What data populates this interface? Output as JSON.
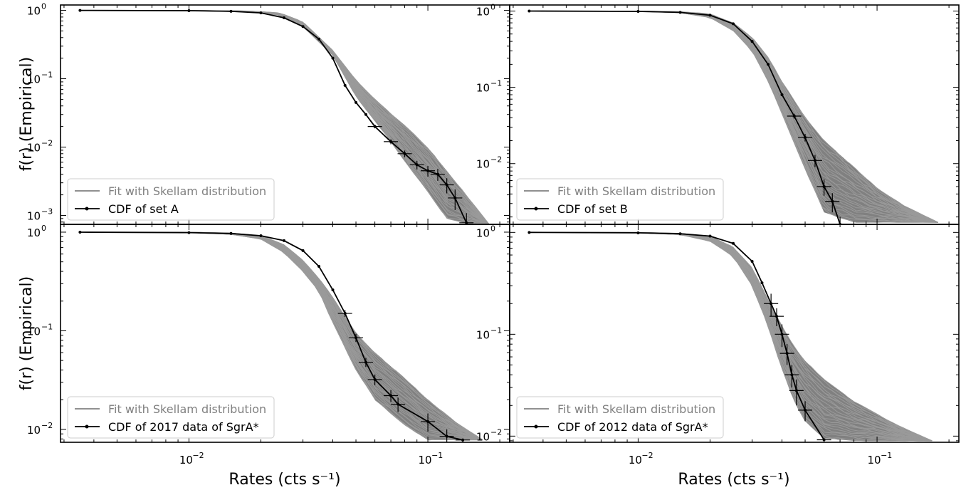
{
  "figure": {
    "ylabel_top": "f(r) (Empirical)",
    "ylabel_bottom": "f(r) (Empirical)",
    "xlabel_left": "Rates (cts s⁻¹)",
    "xlabel_right": "Rates (cts s⁻¹)"
  },
  "colors": {
    "fit": "#808080",
    "cdf": "#000000",
    "axes": "#000000"
  },
  "chart_data": [
    {
      "type": "line",
      "xscale": "log",
      "yscale": "log",
      "xlim": [
        0.0029,
        0.22
      ],
      "ylim": [
        0.00074,
        1.2
      ],
      "legend": {
        "placement": "bottom-left",
        "entries": [
          "Fit with Skellam distribution",
          "CDF of set A"
        ]
      },
      "xticks": [
        {
          "value": 0.01,
          "label": "10",
          "exp": "−2"
        },
        {
          "value": 0.1,
          "label": "10",
          "exp": "−1"
        }
      ],
      "yticks": [
        {
          "value": 1,
          "label": "10",
          "exp": "0"
        },
        {
          "value": 0.1,
          "label": "10",
          "exp": "−1"
        },
        {
          "value": 0.01,
          "label": "10",
          "exp": "−2"
        },
        {
          "value": 0.001,
          "label": "10",
          "exp": "−3"
        }
      ],
      "series": [
        {
          "name": "Fit with Skellam distribution",
          "kind": "band",
          "x": [
            0.0035,
            0.01,
            0.018,
            0.024,
            0.03,
            0.04,
            0.05,
            0.06,
            0.07,
            0.08,
            0.1,
            0.12,
            0.15,
            0.18
          ],
          "lo": [
            1.0,
            0.99,
            0.95,
            0.85,
            0.58,
            0.22,
            0.055,
            0.024,
            0.012,
            0.0062,
            0.0022,
            0.0009,
            0.00075,
            0.00075
          ],
          "hi": [
            1.0,
            1.0,
            0.98,
            0.92,
            0.68,
            0.26,
            0.095,
            0.05,
            0.031,
            0.021,
            0.0098,
            0.0045,
            0.0017,
            0.00075
          ]
        },
        {
          "name": "CDF of set A",
          "kind": "cdf",
          "x": [
            0.0035,
            0.01,
            0.015,
            0.02,
            0.025,
            0.03,
            0.035,
            0.04,
            0.045,
            0.05,
            0.055,
            0.06,
            0.07,
            0.08,
            0.09,
            0.1,
            0.11,
            0.12,
            0.13,
            0.145
          ],
          "y": [
            1.0,
            0.99,
            0.97,
            0.92,
            0.78,
            0.58,
            0.38,
            0.2,
            0.08,
            0.045,
            0.03,
            0.02,
            0.012,
            0.008,
            0.0055,
            0.0045,
            0.004,
            0.0028,
            0.0018,
            0.00078
          ],
          "yerr": [
            0,
            0,
            0,
            0,
            0,
            0,
            0,
            0,
            0,
            0,
            0,
            0.0012,
            0.001,
            0.0009,
            0.0008,
            0.0008,
            0.0008,
            0.0007,
            0.0006,
            0.0003
          ]
        }
      ]
    },
    {
      "type": "line",
      "xscale": "log",
      "yscale": "log",
      "xlim": [
        0.0029,
        0.22
      ],
      "ylim": [
        0.0016,
        1.2
      ],
      "legend": {
        "placement": "bottom-left",
        "entries": [
          "Fit with Skellam distribution",
          "CDF of set B"
        ]
      },
      "xticks": [
        {
          "value": 0.01,
          "label": "10",
          "exp": "−2"
        },
        {
          "value": 0.1,
          "label": "10",
          "exp": "−1"
        }
      ],
      "yticks": [
        {
          "value": 1,
          "label": "10",
          "exp": "0"
        },
        {
          "value": 0.1,
          "label": "10",
          "exp": "−1"
        },
        {
          "value": 0.01,
          "label": "10",
          "exp": "−2"
        }
      ],
      "series": [
        {
          "name": "Fit with Skellam distribution",
          "kind": "band",
          "x": [
            0.0035,
            0.01,
            0.015,
            0.02,
            0.025,
            0.03,
            0.035,
            0.04,
            0.05,
            0.06,
            0.08,
            0.1,
            0.13,
            0.18
          ],
          "lo": [
            1.0,
            0.99,
            0.95,
            0.82,
            0.55,
            0.3,
            0.12,
            0.045,
            0.0085,
            0.0023,
            0.0017,
            0.0017,
            0.0017,
            0.0017
          ],
          "hi": [
            1.0,
            1.0,
            0.98,
            0.92,
            0.7,
            0.45,
            0.25,
            0.12,
            0.04,
            0.02,
            0.009,
            0.0048,
            0.0028,
            0.0017
          ]
        },
        {
          "name": "CDF of set B",
          "kind": "cdf",
          "x": [
            0.0035,
            0.01,
            0.015,
            0.02,
            0.025,
            0.03,
            0.035,
            0.04,
            0.045,
            0.05,
            0.055,
            0.06,
            0.065,
            0.07
          ],
          "y": [
            1.0,
            0.99,
            0.96,
            0.88,
            0.68,
            0.4,
            0.2,
            0.08,
            0.042,
            0.022,
            0.011,
            0.005,
            0.0032,
            0.0016
          ],
          "yerr": [
            0,
            0,
            0,
            0,
            0,
            0,
            0,
            0,
            0.003,
            0.0025,
            0.002,
            0.0012,
            0.0009,
            0.0004
          ]
        }
      ]
    },
    {
      "type": "line",
      "xscale": "log",
      "yscale": "log",
      "xlim": [
        0.0029,
        0.22
      ],
      "ylim": [
        0.0074,
        1.2
      ],
      "legend": {
        "placement": "bottom-left",
        "entries": [
          "Fit with Skellam distribution",
          "CDF of 2017 data of SgrA*"
        ]
      },
      "xticks": [
        {
          "value": 0.01,
          "label": "10",
          "exp": "−2"
        },
        {
          "value": 0.1,
          "label": "10",
          "exp": "−1"
        }
      ],
      "yticks": [
        {
          "value": 1,
          "label": "10",
          "exp": "0"
        },
        {
          "value": 0.1,
          "label": "10",
          "exp": "−1"
        },
        {
          "value": 0.01,
          "label": "10",
          "exp": "−2"
        }
      ],
      "series": [
        {
          "name": "Fit with Skellam distribution",
          "kind": "band",
          "x": [
            0.0035,
            0.01,
            0.015,
            0.02,
            0.025,
            0.03,
            0.035,
            0.04,
            0.05,
            0.06,
            0.08,
            0.1,
            0.13,
            0.17
          ],
          "lo": [
            1.0,
            0.99,
            0.95,
            0.85,
            0.62,
            0.4,
            0.25,
            0.12,
            0.04,
            0.02,
            0.011,
            0.0078,
            0.0078,
            0.0078
          ],
          "hi": [
            1.0,
            1.0,
            0.98,
            0.92,
            0.75,
            0.52,
            0.34,
            0.22,
            0.095,
            0.06,
            0.033,
            0.02,
            0.012,
            0.0078
          ]
        },
        {
          "name": "CDF of 2017 data of SgrA*",
          "kind": "cdf",
          "x": [
            0.0035,
            0.01,
            0.015,
            0.02,
            0.025,
            0.03,
            0.035,
            0.04,
            0.045,
            0.05,
            0.055,
            0.06,
            0.07,
            0.075,
            0.1,
            0.12,
            0.14
          ],
          "y": [
            1.0,
            0.99,
            0.97,
            0.92,
            0.82,
            0.65,
            0.45,
            0.26,
            0.15,
            0.085,
            0.048,
            0.032,
            0.022,
            0.018,
            0.012,
            0.0085,
            0.0078
          ],
          "yerr": [
            0,
            0,
            0,
            0,
            0,
            0,
            0,
            0,
            0.012,
            0.008,
            0.005,
            0.004,
            0.003,
            0.003,
            0.0025,
            0.0015,
            0.0003
          ]
        }
      ]
    },
    {
      "type": "line",
      "xscale": "log",
      "yscale": "log",
      "xlim": [
        0.0029,
        0.22
      ],
      "ylim": [
        0.0087,
        1.2
      ],
      "legend": {
        "placement": "bottom-left",
        "entries": [
          "Fit with Skellam distribution",
          "CDF of 2012 data of SgrA*"
        ]
      },
      "xticks": [
        {
          "value": 0.01,
          "label": "10",
          "exp": "−2"
        },
        {
          "value": 0.1,
          "label": "10",
          "exp": "−1"
        }
      ],
      "yticks": [
        {
          "value": 1,
          "label": "10",
          "exp": "0"
        },
        {
          "value": 0.1,
          "label": "10",
          "exp": "−1"
        },
        {
          "value": 0.01,
          "label": "10",
          "exp": "−2"
        }
      ],
      "series": [
        {
          "name": "Fit with Skellam distribution",
          "kind": "band",
          "x": [
            0.0035,
            0.01,
            0.015,
            0.02,
            0.025,
            0.03,
            0.035,
            0.04,
            0.045,
            0.05,
            0.06,
            0.08,
            0.12,
            0.17
          ],
          "lo": [
            1.0,
            0.99,
            0.95,
            0.82,
            0.58,
            0.3,
            0.12,
            0.045,
            0.022,
            0.014,
            0.0095,
            0.009,
            0.009,
            0.009
          ],
          "hi": [
            1.0,
            1.0,
            0.98,
            0.92,
            0.72,
            0.45,
            0.22,
            0.12,
            0.075,
            0.055,
            0.036,
            0.022,
            0.013,
            0.009
          ]
        },
        {
          "name": "CDF of 2012 data of SgrA*",
          "kind": "cdf",
          "x": [
            0.0035,
            0.01,
            0.015,
            0.02,
            0.025,
            0.03,
            0.033,
            0.036,
            0.038,
            0.04,
            0.042,
            0.044,
            0.046,
            0.05,
            0.06
          ],
          "y": [
            1.0,
            0.99,
            0.97,
            0.92,
            0.78,
            0.52,
            0.32,
            0.2,
            0.15,
            0.1,
            0.065,
            0.04,
            0.028,
            0.018,
            0.0092
          ],
          "yerr": [
            0,
            0,
            0,
            0,
            0,
            0,
            0,
            0.05,
            0.03,
            0.025,
            0.015,
            0.01,
            0.008,
            0.004,
            0.0003
          ]
        }
      ]
    }
  ]
}
